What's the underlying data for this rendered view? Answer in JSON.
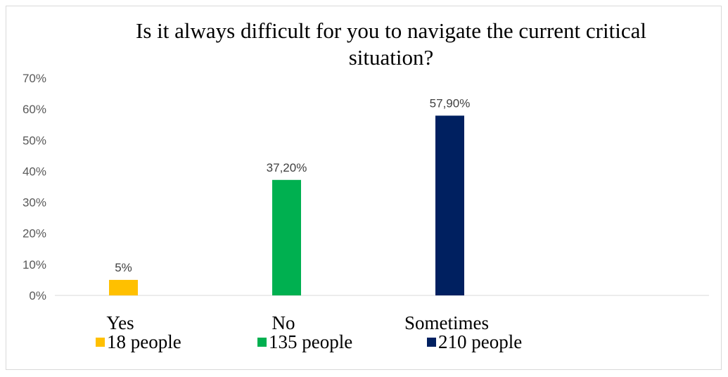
{
  "chart_data": {
    "type": "bar",
    "title_lines": [
      "Is it always difficult for you to navigate the current critical",
      "situation?"
    ],
    "categories": [
      "Yes",
      "No",
      "Sometimes"
    ],
    "values": [
      5.0,
      37.2,
      57.9
    ],
    "data_labels": [
      "5%",
      "37,20%",
      "57,90%"
    ],
    "colors": [
      "#FFC000",
      "#00B050",
      "#002060"
    ],
    "y_ticks": [
      "0%",
      "10%",
      "20%",
      "30%",
      "40%",
      "50%",
      "60%",
      "70%"
    ],
    "ylim": [
      0,
      70
    ],
    "grid": false,
    "legend_position": "bottom",
    "legend": [
      "18 people",
      "135 people",
      "210 people"
    ]
  }
}
